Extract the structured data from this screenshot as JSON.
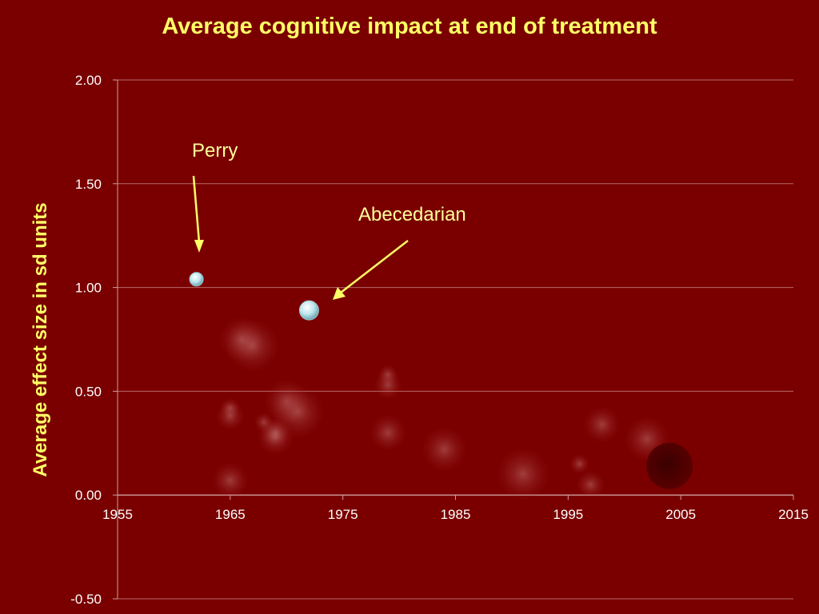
{
  "chart_data": {
    "type": "scatter",
    "title": "Average cognitive impact at end of treatment",
    "xlabel": "",
    "ylabel": "Average effect size in sd units",
    "xlim": [
      1955,
      2015
    ],
    "ylim": [
      -0.5,
      2.0
    ],
    "x_ticks": [
      "1955",
      "1965",
      "1975",
      "1985",
      "1995",
      "2005",
      "2015"
    ],
    "y_ticks": [
      "2.00",
      "1.50",
      "1.00",
      "0.50",
      "0.00",
      "-0.50"
    ],
    "grid": true,
    "highlighted_points": [
      {
        "name": "Perry",
        "x": 1962,
        "y": 1.04,
        "size": "small"
      },
      {
        "name": "Abecedarian",
        "x": 1972,
        "y": 0.89,
        "size": "medium"
      }
    ],
    "faded_points": [
      {
        "x": 1965,
        "y": 0.42
      },
      {
        "x": 1965,
        "y": 0.38
      },
      {
        "x": 1965,
        "y": 0.07
      },
      {
        "x": 1966,
        "y": 0.75
      },
      {
        "x": 1967,
        "y": 0.72
      },
      {
        "x": 1968,
        "y": 0.35
      },
      {
        "x": 1969,
        "y": 0.3
      },
      {
        "x": 1969,
        "y": 0.28
      },
      {
        "x": 1970,
        "y": 0.45
      },
      {
        "x": 1971,
        "y": 0.4
      },
      {
        "x": 1979,
        "y": 0.58
      },
      {
        "x": 1979,
        "y": 0.53
      },
      {
        "x": 1979,
        "y": 0.3
      },
      {
        "x": 1984,
        "y": 0.22
      },
      {
        "x": 1991,
        "y": 0.1
      },
      {
        "x": 1996,
        "y": 0.15
      },
      {
        "x": 1997,
        "y": 0.05
      },
      {
        "x": 1998,
        "y": 0.34
      },
      {
        "x": 2002,
        "y": 0.27
      }
    ],
    "dark_points": [
      {
        "x": 2004,
        "y": 0.14
      }
    ]
  }
}
